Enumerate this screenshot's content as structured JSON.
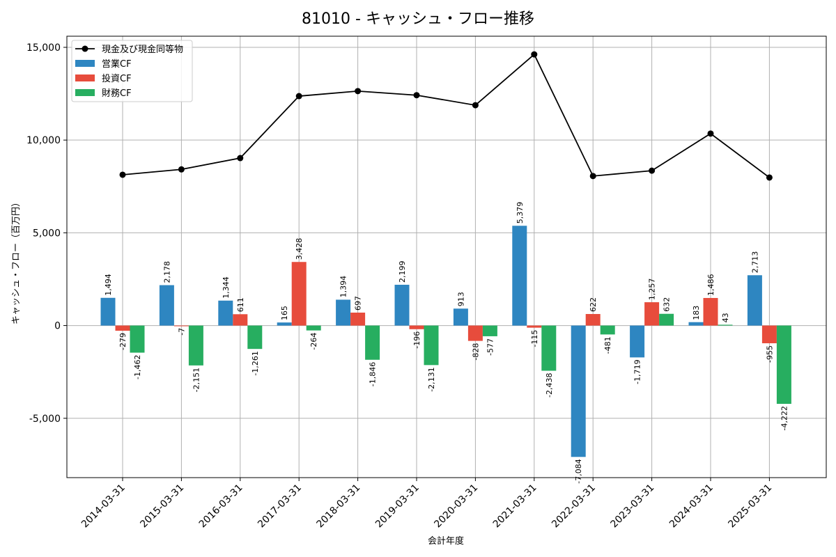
{
  "chart_data": {
    "type": "bar",
    "title": "81010 - キャッシュ・フロー推移",
    "xlabel": "会計年度",
    "ylabel": "キャッシュ・フロー（百万円）",
    "ylim": [
      -8200,
      15600
    ],
    "yticks": [
      -5000,
      0,
      5000,
      10000,
      15000
    ],
    "ytick_labels": [
      "-5,000",
      "0",
      "5,000",
      "10,000",
      "15,000"
    ],
    "grid": true,
    "legend_position": "top-left",
    "categories": [
      "2014-03-31",
      "2015-03-31",
      "2016-03-31",
      "2017-03-31",
      "2018-03-31",
      "2019-03-31",
      "2020-03-31",
      "2021-03-31",
      "2022-03-31",
      "2023-03-31",
      "2024-03-31",
      "2025-03-31"
    ],
    "series": [
      {
        "name": "営業CF",
        "kind": "bar",
        "color": "#2e86c1",
        "values": [
          1494,
          2178,
          1344,
          165,
          1394,
          2199,
          913,
          5379,
          -7084,
          -1719,
          183,
          2713
        ],
        "labels": [
          "1,494",
          "2,178",
          "1,344",
          "165",
          "1,394",
          "2,199",
          "913",
          "5,379",
          "-7,084",
          "-1,719",
          "183",
          "2,713"
        ]
      },
      {
        "name": "投資CF",
        "kind": "bar",
        "color": "#e74c3c",
        "values": [
          -279,
          -7,
          611,
          3428,
          697,
          -196,
          -828,
          -115,
          622,
          1257,
          1486,
          -955
        ],
        "labels": [
          "-279",
          "-7",
          "611",
          "3,428",
          "697",
          "-196",
          "-828",
          "-115",
          "622",
          "1,257",
          "1,486",
          "-955"
        ]
      },
      {
        "name": "財務CF",
        "kind": "bar",
        "color": "#27ae60",
        "values": [
          -1462,
          -2151,
          -1261,
          -264,
          -1846,
          -2131,
          -577,
          -2438,
          -481,
          632,
          43,
          -4222
        ],
        "labels": [
          "-1,462",
          "-2,151",
          "-1,261",
          "-264",
          "-1,846",
          "-2,131",
          "-577",
          "-2,438",
          "-481",
          "632",
          "43",
          "-4,222"
        ]
      },
      {
        "name": "現金及び現金同等物",
        "kind": "line",
        "color": "#000000",
        "values": [
          8130,
          8420,
          9030,
          12370,
          12640,
          12420,
          11880,
          14620,
          8060,
          8350,
          10350,
          7980
        ]
      }
    ]
  }
}
